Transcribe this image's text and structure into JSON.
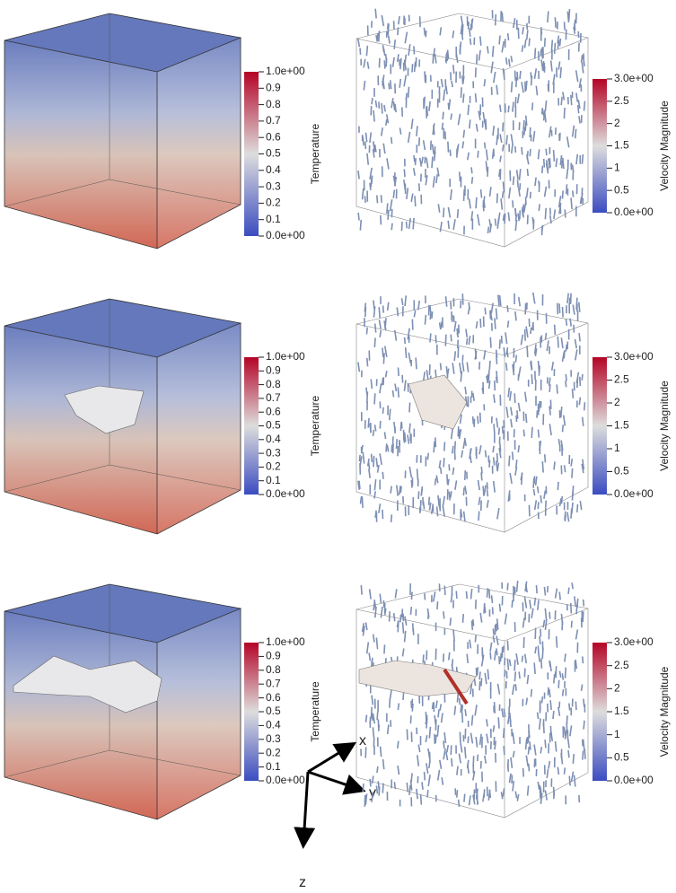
{
  "panels": [
    {
      "temperature": {
        "title": "Temperature",
        "ticks": [
          "1.0e+00",
          "0.9",
          "0.8",
          "0.7",
          "0.6",
          "0.5",
          "0.4",
          "0.3",
          "0.2",
          "0.1",
          "0.0e+00"
        ]
      },
      "velocity": {
        "title": "Velocity Magnitude",
        "ticks": [
          "3.0e+00",
          "2.5",
          "2",
          "1.5",
          "1",
          "0.5",
          "0.0e+00"
        ]
      }
    },
    {
      "temperature": {
        "title": "Temperature",
        "ticks": [
          "1.0e+00",
          "0.9",
          "0.8",
          "0.7",
          "0.6",
          "0.5",
          "0.4",
          "0.3",
          "0.2",
          "0.1",
          "0.0e+00"
        ]
      },
      "velocity": {
        "title": "Velocity Magnitude",
        "ticks": [
          "3.0e+00",
          "2.5",
          "2",
          "1.5",
          "1",
          "0.5",
          "0.0e+00"
        ]
      }
    },
    {
      "temperature": {
        "title": "Temperature",
        "ticks": [
          "1.0e+00",
          "0.9",
          "0.8",
          "0.7",
          "0.6",
          "0.5",
          "0.4",
          "0.3",
          "0.2",
          "0.1",
          "0.0e+00"
        ]
      },
      "velocity": {
        "title": "Velocity Magnitude",
        "ticks": [
          "3.0e+00",
          "2.5",
          "2",
          "1.5",
          "1",
          "0.5",
          "0.0e+00"
        ]
      }
    }
  ],
  "axes": {
    "x": "x",
    "y": "y",
    "z": "z"
  }
}
